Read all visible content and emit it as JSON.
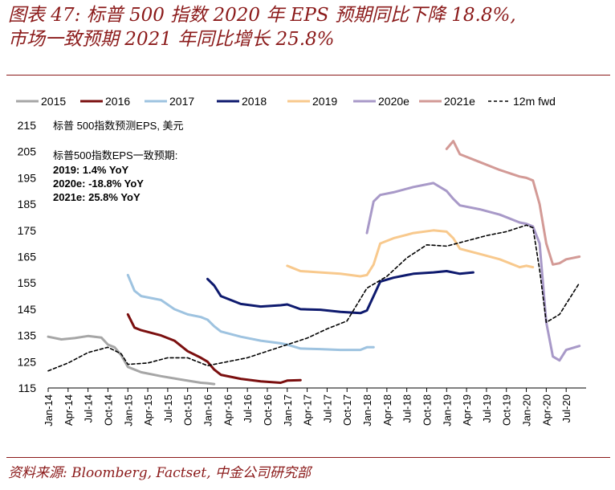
{
  "header": {
    "line1": "图表 47: 标普 500 指数 2020 年 EPS 预期同比下降 18.8%,",
    "line2": "市场一致预期 2021 年同比增长 25.8%"
  },
  "source": "资料来源: Bloomberg, Factset, 中金公司研究部",
  "colors": {
    "title": "#8b1a1a",
    "s2015": "#a6a6a6",
    "s2016": "#7b0f0f",
    "s2017": "#9ec3e0",
    "s2018": "#0e1a6e",
    "s2019": "#f8c98d",
    "s2020e": "#a899c8",
    "s2021e": "#d39a96",
    "fwd": "#000000"
  },
  "chart_data": {
    "type": "line",
    "title": "",
    "xlabel": "",
    "ylabel": "标普 500指数预测EPS, 美元",
    "ylim": [
      115,
      215
    ],
    "yticks": [
      "215",
      "205",
      "195",
      "185",
      "175",
      "165",
      "155",
      "145",
      "135",
      "125",
      "115"
    ],
    "xlim": [
      "2014-01",
      "2020-10"
    ],
    "xticks": [
      "Jan-14",
      "Apr-14",
      "Jul-14",
      "Oct-14",
      "Jan-15",
      "Apr-15",
      "Jul-15",
      "Oct-15",
      "Jan-16",
      "Apr-16",
      "Jul-16",
      "Oct-16",
      "Jan-17",
      "Apr-17",
      "Jul-17",
      "Oct-17",
      "Jan-18",
      "Apr-18",
      "Jul-18",
      "Oct-18",
      "Jan-19",
      "Apr-19",
      "Jul-19",
      "Oct-19",
      "Jan-20",
      "Apr-20",
      "Jul-20"
    ],
    "annotation": {
      "heading": "标普500指数EPS一致预期:",
      "lines": [
        "2019: 1.4% YoY",
        "2020e: -18.8% YoY",
        "2021e: 25.8% YoY"
      ]
    },
    "legend_position": "top",
    "series": [
      {
        "name": "2015",
        "color": "#a6a6a6",
        "dash": false,
        "x": [
          "2014-01",
          "2014-03",
          "2014-05",
          "2014-07",
          "2014-09",
          "2014-10",
          "2014-11",
          "2014-12",
          "2015-01",
          "2015-03",
          "2015-06",
          "2015-09",
          "2015-12",
          "2016-01",
          "2016-02"
        ],
        "values": [
          134.5,
          133.5,
          134.0,
          134.8,
          134.2,
          131.5,
          130.5,
          127.5,
          123.0,
          121.0,
          119.5,
          118.2,
          117.0,
          116.8,
          116.5
        ]
      },
      {
        "name": "2016",
        "color": "#7b0f0f",
        "dash": false,
        "x": [
          "2015-01",
          "2015-02",
          "2015-03",
          "2015-06",
          "2015-08",
          "2015-10",
          "2015-12",
          "2016-01",
          "2016-02",
          "2016-03",
          "2016-06",
          "2016-09",
          "2016-12",
          "2017-01",
          "2017-03"
        ],
        "values": [
          143.0,
          138.0,
          137.0,
          135.0,
          133.0,
          129.0,
          126.5,
          125.0,
          122.0,
          120.0,
          118.5,
          117.5,
          117.0,
          117.8,
          118.0
        ]
      },
      {
        "name": "2017",
        "color": "#9ec3e0",
        "dash": false,
        "x": [
          "2015-01",
          "2015-02",
          "2015-03",
          "2015-06",
          "2015-08",
          "2015-10",
          "2015-12",
          "2016-01",
          "2016-02",
          "2016-03",
          "2016-06",
          "2016-09",
          "2016-12",
          "2017-01",
          "2017-03",
          "2017-06",
          "2017-09",
          "2017-12",
          "2018-01",
          "2018-02"
        ],
        "values": [
          158.0,
          152.0,
          150.0,
          148.5,
          145.0,
          143.0,
          142.0,
          141.0,
          138.5,
          136.5,
          134.5,
          133.0,
          132.0,
          131.5,
          130.0,
          129.8,
          129.5,
          129.5,
          130.5,
          130.5
        ]
      },
      {
        "name": "2018",
        "color": "#0e1a6e",
        "dash": false,
        "x": [
          "2016-01",
          "2016-02",
          "2016-03",
          "2016-06",
          "2016-09",
          "2016-12",
          "2017-01",
          "2017-03",
          "2017-06",
          "2017-09",
          "2017-12",
          "2018-01",
          "2018-02",
          "2018-03",
          "2018-05",
          "2018-08",
          "2018-11",
          "2019-01",
          "2019-03",
          "2019-05"
        ],
        "values": [
          156.5,
          154.0,
          150.0,
          147.0,
          146.0,
          146.5,
          146.8,
          145.0,
          144.8,
          144.0,
          143.5,
          144.5,
          150.0,
          155.5,
          157.0,
          158.5,
          159.0,
          159.5,
          158.5,
          159.0
        ]
      },
      {
        "name": "2019",
        "color": "#f8c98d",
        "dash": false,
        "x": [
          "2017-01",
          "2017-02",
          "2017-03",
          "2017-06",
          "2017-09",
          "2017-12",
          "2018-01",
          "2018-02",
          "2018-03",
          "2018-05",
          "2018-08",
          "2018-11",
          "2019-01",
          "2019-02",
          "2019-03",
          "2019-06",
          "2019-09",
          "2019-12",
          "2020-01",
          "2020-02"
        ],
        "values": [
          161.5,
          160.5,
          159.5,
          159.0,
          158.5,
          157.5,
          158.0,
          162.0,
          170.0,
          172.0,
          174.0,
          175.0,
          174.5,
          172.0,
          168.0,
          166.0,
          164.0,
          161.0,
          161.5,
          161.0
        ]
      },
      {
        "name": "2020e",
        "color": "#a899c8",
        "dash": false,
        "x": [
          "2018-01",
          "2018-02",
          "2018-03",
          "2018-05",
          "2018-08",
          "2018-11",
          "2019-01",
          "2019-02",
          "2019-03",
          "2019-06",
          "2019-09",
          "2019-12",
          "2020-01",
          "2020-02",
          "2020-03",
          "2020-04",
          "2020-05",
          "2020-06",
          "2020-07",
          "2020-09"
        ],
        "values": [
          174.0,
          186.0,
          188.5,
          189.5,
          191.5,
          193.0,
          190.0,
          187.0,
          184.5,
          183.0,
          181.0,
          178.0,
          177.5,
          176.5,
          170.0,
          140.0,
          127.0,
          125.5,
          129.5,
          131.0
        ]
      },
      {
        "name": "2021e",
        "color": "#d39a96",
        "dash": false,
        "x": [
          "2019-01",
          "2019-02",
          "2019-03",
          "2019-06",
          "2019-09",
          "2019-12",
          "2020-01",
          "2020-02",
          "2020-03",
          "2020-04",
          "2020-05",
          "2020-06",
          "2020-07",
          "2020-09"
        ],
        "values": [
          206.0,
          209.0,
          204.0,
          201.0,
          198.0,
          195.5,
          195.0,
          194.0,
          185.0,
          170.0,
          162.0,
          162.5,
          164.0,
          165.0
        ]
      },
      {
        "name": "12m fwd",
        "color": "#000000",
        "dash": true,
        "x": [
          "2014-01",
          "2014-04",
          "2014-07",
          "2014-10",
          "2014-12",
          "2015-01",
          "2015-04",
          "2015-07",
          "2015-10",
          "2016-01",
          "2016-04",
          "2016-07",
          "2016-10",
          "2017-01",
          "2017-04",
          "2017-07",
          "2017-10",
          "2018-01",
          "2018-04",
          "2018-07",
          "2018-10",
          "2019-01",
          "2019-04",
          "2019-07",
          "2019-10",
          "2020-01",
          "2020-02",
          "2020-03",
          "2020-04",
          "2020-06",
          "2020-09"
        ],
        "values": [
          121.5,
          124.5,
          128.5,
          130.5,
          128.0,
          124.0,
          124.5,
          126.5,
          126.5,
          123.5,
          125.0,
          126.5,
          129.0,
          131.5,
          134.0,
          137.5,
          140.5,
          153.0,
          157.5,
          164.5,
          169.5,
          169.0,
          171.0,
          173.0,
          174.5,
          177.0,
          176.0,
          160.0,
          140.0,
          143.0,
          155.0
        ]
      }
    ]
  }
}
